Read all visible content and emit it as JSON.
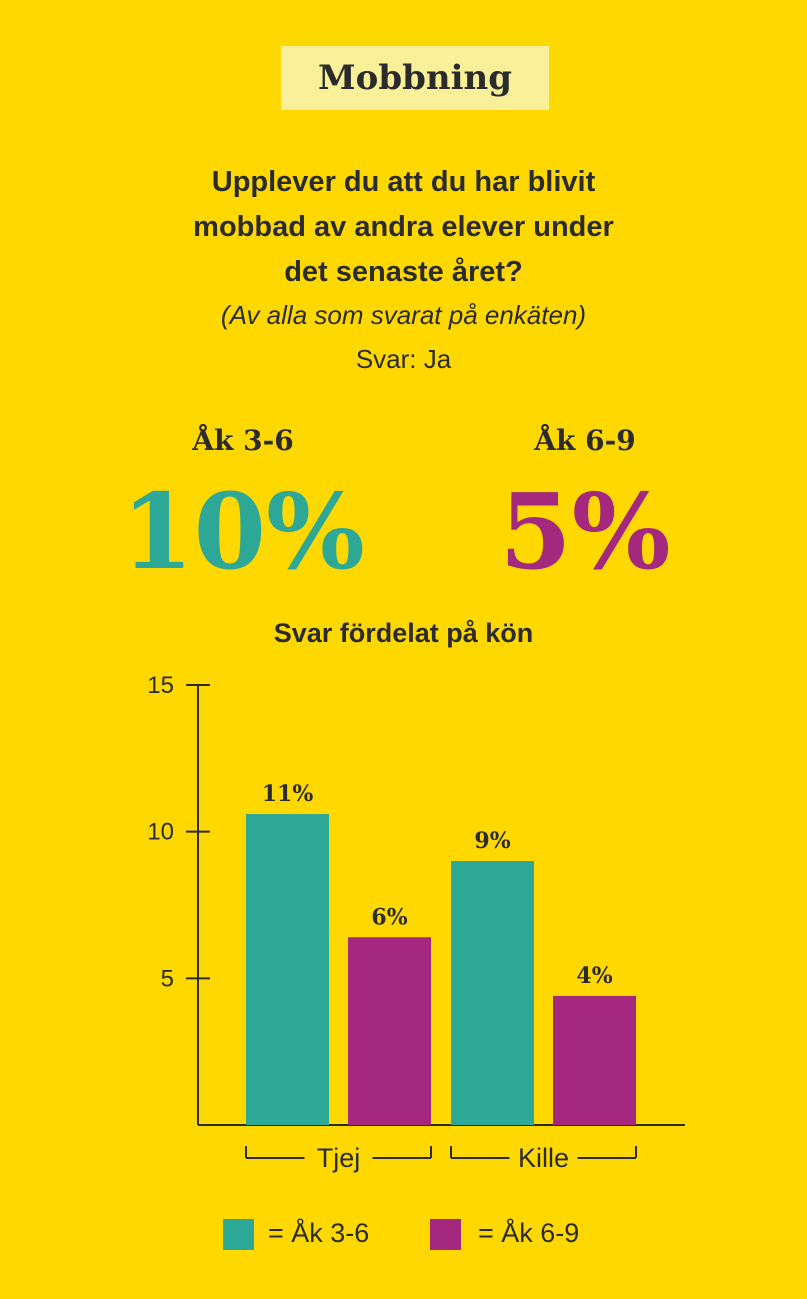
{
  "header": {
    "title": "Mobbning"
  },
  "question": {
    "lines": [
      "Upplever du att du har blivit",
      "mobbad av andra elever under",
      "det senaste året?"
    ],
    "note": "(Av alla som svarat på enkäten)",
    "answer": "Svar: Ja"
  },
  "summary": [
    {
      "label": "Åk 3-6",
      "value": "10%",
      "color": "#2EA896"
    },
    {
      "label": "Åk 6-9",
      "value": "5%",
      "color": "#A4287E"
    }
  ],
  "chart_data": {
    "type": "bar",
    "title": "Svar fördelat på kön",
    "categories": [
      "Tjej",
      "Kille"
    ],
    "series": [
      {
        "name": "Åk 3-6",
        "color": "#2EA896",
        "values": [
          10.6,
          9.0
        ],
        "labels": [
          "11%",
          "9%"
        ]
      },
      {
        "name": "Åk 6-9",
        "color": "#A4287E",
        "values": [
          6.4,
          4.4
        ],
        "labels": [
          "6%",
          "4%"
        ]
      }
    ],
    "ylim": [
      0,
      15
    ],
    "yticks": [
      5,
      10,
      15
    ],
    "grid": false,
    "legend_position": "bottom"
  },
  "legend": [
    {
      "text": "= Åk 3-6",
      "color": "#2EA896"
    },
    {
      "text": "= Åk 6-9",
      "color": "#A4287E"
    }
  ]
}
